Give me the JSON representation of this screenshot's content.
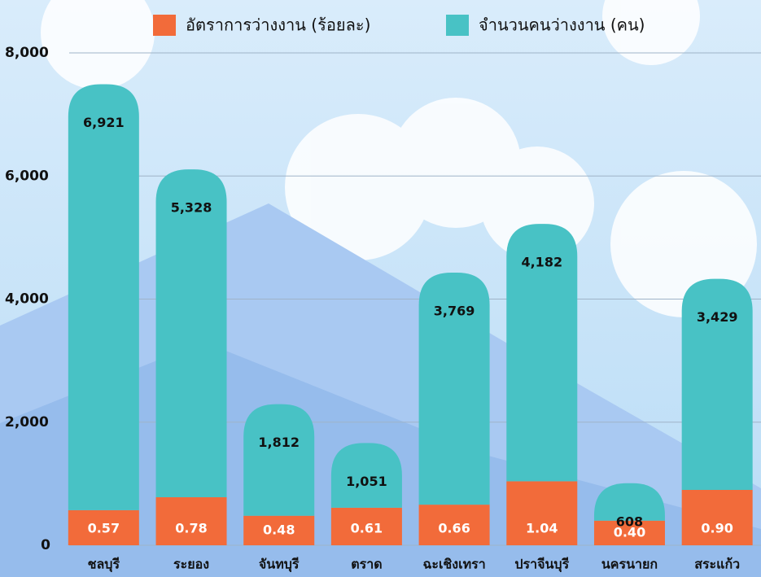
{
  "chart_data": {
    "type": "bar",
    "stacked": true,
    "categories": [
      "ชลบุรี",
      "ระยอง",
      "จันทบุรี",
      "ตราด",
      "ฉะเชิงเทรา",
      "ปราจีนบุรี",
      "นครนายก",
      "สระแก้ว"
    ],
    "series": [
      {
        "name": "อัตราการว่างงาน (ร้อยละ)",
        "color": "#f26b3a",
        "axis": "y2",
        "values": [
          0.57,
          0.78,
          0.48,
          0.61,
          0.66,
          1.04,
          0.4,
          0.9
        ],
        "value_labels": [
          "0.57",
          "0.78",
          "0.48",
          "0.61",
          "0.66",
          "1.04",
          "0.40",
          "0.90"
        ]
      },
      {
        "name": "จำนวนคนว่างงาน (คน)",
        "color": "#48c2c5",
        "values": [
          6921,
          5328,
          1812,
          1051,
          3769,
          4182,
          608,
          3429
        ],
        "value_labels": [
          "6,921",
          "5,328",
          "1,812",
          "1,051",
          "3,769",
          "4,182",
          "608",
          "3,429"
        ]
      }
    ],
    "ylim": [
      0,
      8000
    ],
    "yticks": [
      0,
      {
        "value": 2000,
        "label": "2,000"
      },
      {
        "value": 4000,
        "label": "4,000"
      },
      {
        "value": 6000,
        "label": "6,000"
      },
      {
        "value": 8000,
        "label": "8,000"
      }
    ],
    "y2lim": [
      0,
      8
    ],
    "grid": true,
    "legend": "top"
  }
}
